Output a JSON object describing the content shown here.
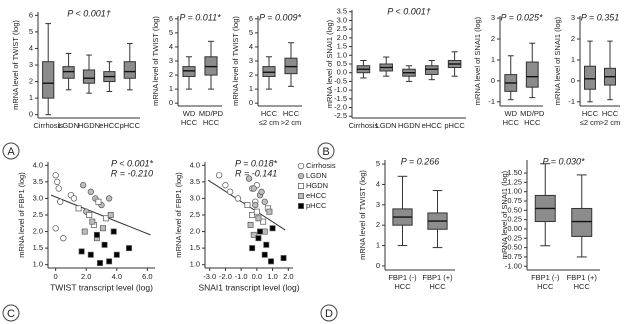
{
  "panel_labels": [
    "A",
    "B",
    "C",
    "D"
  ],
  "chart_data": [
    {
      "type": "box",
      "ylabel": "mRNA level of TWIST (log)",
      "annotations": [
        "P < 0.001†"
      ],
      "categories": [
        [
          "Cirrhosis"
        ],
        [
          "LGDN"
        ],
        [
          "HGDN"
        ],
        [
          "eHCC"
        ],
        [
          "pHCC"
        ]
      ],
      "color": "#8c8c8c",
      "boxes": [
        {
          "whislo": 0,
          "q1": 1.0,
          "med": 1.9,
          "q3": 3.2,
          "whishi": 5.5
        },
        {
          "whislo": 1.5,
          "q1": 2.2,
          "med": 2.6,
          "q3": 2.9,
          "whishi": 3.7
        },
        {
          "whislo": 1.3,
          "q1": 1.9,
          "med": 2.2,
          "q3": 2.7,
          "whishi": 3.6
        },
        {
          "whislo": 1.4,
          "q1": 2.0,
          "med": 2.3,
          "q3": 2.6,
          "whishi": 3.2
        },
        {
          "whislo": 1.5,
          "q1": 2.2,
          "med": 2.6,
          "q3": 3.2,
          "whishi": 4.3
        }
      ],
      "ylim": [
        -0.2,
        6.2
      ],
      "yticks": [
        0,
        1,
        2,
        3,
        4,
        5,
        6
      ]
    },
    {
      "type": "box",
      "ylabel": "mRNA level of TWIST (log)",
      "annotations": [
        "P = 0.011*"
      ],
      "categories": [
        [
          "WD",
          "HCC"
        ],
        [
          "MD/PD",
          "HCC"
        ]
      ],
      "color": "#8c8c8c",
      "boxes": [
        {
          "whislo": 1.0,
          "q1": 1.9,
          "med": 2.3,
          "q3": 2.6,
          "whishi": 3.3
        },
        {
          "whislo": 1.0,
          "q1": 2.0,
          "med": 2.6,
          "q3": 3.3,
          "whishi": 4.4
        }
      ],
      "ylim": [
        -0.2,
        6.2
      ],
      "yticks": [
        0,
        1,
        2,
        3,
        4,
        5,
        6
      ]
    },
    {
      "type": "box",
      "ylabel": "mRNA level of TWIST (log)",
      "annotations": [
        "P = 0.009*"
      ],
      "categories": [
        [
          "HCC",
          "≤2 cm"
        ],
        [
          "HCC",
          ">2 cm"
        ]
      ],
      "color": "#8c8c8c",
      "boxes": [
        {
          "whislo": 1.0,
          "q1": 1.9,
          "med": 2.2,
          "q3": 2.6,
          "whishi": 3.3
        },
        {
          "whislo": 1.2,
          "q1": 2.1,
          "med": 2.6,
          "q3": 3.2,
          "whishi": 4.3
        }
      ],
      "ylim": [
        -0.2,
        6.2
      ],
      "yticks": [
        0,
        1,
        2,
        3,
        4,
        5,
        6
      ]
    },
    {
      "type": "box",
      "ylabel": "mRNA level of SNAI1 (log)",
      "annotations": [
        "P < 0.001†"
      ],
      "categories": [
        [
          "Cirrhosis"
        ],
        [
          "LGDN"
        ],
        [
          "HGDN"
        ],
        [
          "eHCC"
        ],
        [
          "pHCC"
        ]
      ],
      "color": "#8c8c8c",
      "boxes": [
        {
          "whislo": -0.3,
          "q1": 0.0,
          "med": 0.2,
          "q3": 0.4,
          "whishi": 0.7
        },
        {
          "whislo": -0.2,
          "q1": 0.1,
          "med": 0.3,
          "q3": 0.5,
          "whishi": 0.9
        },
        {
          "whislo": -0.5,
          "q1": -0.2,
          "med": 0.0,
          "q3": 0.2,
          "whishi": 0.4
        },
        {
          "whislo": -0.4,
          "q1": -0.1,
          "med": 0.2,
          "q3": 0.4,
          "whishi": 0.7
        },
        {
          "whislo": -0.2,
          "q1": 0.3,
          "med": 0.5,
          "q3": 0.7,
          "whishi": 1.2
        }
      ],
      "ylim": [
        -2.6,
        3.6
      ],
      "yticks": [
        -2.5,
        {
          "value": -2,
          "label": "-2.0"
        },
        -1.5,
        {
          "value": -1,
          "label": "-1.0"
        },
        -0.5,
        {
          "value": 0,
          "label": "0.0"
        },
        0.5,
        {
          "value": 1,
          "label": "1.0"
        },
        1.5,
        {
          "value": 2,
          "label": "2.0"
        },
        2.5,
        {
          "value": 3,
          "label": "3.0"
        },
        3.5
      ]
    },
    {
      "type": "box",
      "ylabel": "mRNA level of SNAI1 (log)",
      "annotations": [
        "P = 0.025*"
      ],
      "categories": [
        [
          "WD",
          "HCC"
        ],
        [
          "MD/PD",
          "HCC"
        ]
      ],
      "color": "#8c8c8c",
      "boxes": [
        {
          "whislo": -0.9,
          "q1": -0.5,
          "med": -0.1,
          "q3": 0.3,
          "whishi": 1.2
        },
        {
          "whislo": -0.8,
          "q1": -0.3,
          "med": 0.2,
          "q3": 0.9,
          "whishi": 1.8
        }
      ],
      "ylim": [
        -1.2,
        3.1
      ],
      "yticks": [
        -1,
        0,
        1,
        2,
        3
      ]
    },
    {
      "type": "box",
      "ylabel": "mRNA level of SNAI1 (log)",
      "annotations": [
        "P = 0.351"
      ],
      "categories": [
        [
          "HCC",
          "≤2 cm"
        ],
        [
          "HCC",
          ">2 cm"
        ]
      ],
      "color": "#8c8c8c",
      "boxes": [
        {
          "whislo": -1.0,
          "q1": -0.4,
          "med": 0.1,
          "q3": 0.7,
          "whishi": 1.9
        },
        {
          "whislo": -0.9,
          "q1": -0.2,
          "med": 0.2,
          "q3": 0.6,
          "whishi": 1.9
        }
      ],
      "ylim": [
        -1.2,
        3.1
      ],
      "yticks": [
        -1,
        0,
        1,
        2,
        3
      ]
    },
    {
      "type": "scatter",
      "xlabel": "TWIST transcript level (log)",
      "ylabel": "mRNA level of FBP1 (log)",
      "annotations": [
        "P < 0.001*",
        "R = -0.210"
      ],
      "series": [
        {
          "marker": "circle",
          "color": "#ffffff",
          "x": [
            0,
            0.1,
            0.2,
            0.3,
            1.0,
            1.2,
            0.0,
            0.5
          ],
          "y": [
            3.7,
            3.5,
            3.3,
            2.9,
            3.1,
            3.0,
            2.1,
            1.8
          ]
        },
        {
          "marker": "circle",
          "color": "#bdbdbd",
          "x": [
            1.8,
            2.3,
            2.6,
            3.0,
            2.0,
            3.5
          ],
          "y": [
            3.4,
            3.2,
            3.0,
            2.8,
            2.6,
            3.0
          ]
        },
        {
          "marker": "square",
          "color": "#ffffff",
          "x": [
            1.5,
            2.2,
            2.8,
            3.3,
            2.5
          ],
          "y": [
            2.7,
            2.5,
            2.9,
            2.4,
            2.2
          ]
        },
        {
          "marker": "square",
          "color": "#bdbdbd",
          "x": [
            1.9,
            2.4,
            3.1,
            2.7,
            3.6
          ],
          "y": [
            2.0,
            2.3,
            2.1,
            1.8,
            2.5
          ]
        },
        {
          "marker": "square",
          "color": "#000000",
          "x": [
            1.7,
            2.3,
            2.7,
            3.2,
            3.5,
            4.0,
            4.8,
            2.9,
            3.8
          ],
          "y": [
            1.4,
            1.3,
            1.9,
            1.6,
            1.1,
            1.3,
            1.5,
            1.05,
            2.0
          ]
        }
      ],
      "trendline": {
        "x": [
          -0.3,
          6.2
        ],
        "y": [
          3.1,
          1.9
        ]
      },
      "xlim": [
        -0.5,
        6.5
      ],
      "xticks": [
        0,
        {
          "value": 2,
          "label": "2.0"
        },
        {
          "value": 4,
          "label": "4.0"
        },
        {
          "value": 6,
          "label": "6.0"
        }
      ],
      "ylim": [
        0.9,
        4.1
      ],
      "yticks": [
        {
          "value": 1,
          "label": "1.0"
        },
        1.5,
        {
          "value": 2,
          "label": "2.0"
        },
        2.5,
        {
          "value": 3,
          "label": "3.0"
        },
        3.5,
        {
          "value": 4,
          "label": "4.0"
        }
      ]
    },
    {
      "type": "scatter",
      "xlabel": "SNAI1 transcript level (log)",
      "ylabel": "mRNA level of FBP1 (log)",
      "annotations": [
        "P = 0.018*",
        "R = -0.141"
      ],
      "legend": "right",
      "series": [
        {
          "name": "Cirrhosis",
          "marker": "circle",
          "color": "#ffffff",
          "x": [
            -2.4,
            -2.0,
            -1.7,
            -1.2,
            -0.3,
            0.0,
            -0.1
          ],
          "y": [
            3.7,
            3.4,
            3.2,
            3.0,
            3.3,
            3.4,
            2.9
          ]
        },
        {
          "name": "LGDN",
          "marker": "circle",
          "color": "#bdbdbd",
          "x": [
            -0.5,
            -0.2,
            0.2,
            0.5,
            0.3,
            -0.1
          ],
          "y": [
            3.6,
            3.3,
            3.1,
            2.9,
            3.2,
            2.8
          ]
        },
        {
          "name": "HGDN",
          "marker": "square",
          "color": "#ffffff",
          "x": [
            -0.6,
            -0.3,
            0.0,
            0.4,
            0.7
          ],
          "y": [
            2.8,
            2.5,
            2.6,
            2.3,
            2.7
          ]
        },
        {
          "name": "eHCC",
          "marker": "square",
          "color": "#bdbdbd",
          "x": [
            -0.4,
            0.1,
            0.5,
            0.8,
            -0.2
          ],
          "y": [
            2.2,
            2.4,
            2.0,
            2.6,
            1.9
          ]
        },
        {
          "name": "pHCC",
          "marker": "square",
          "color": "#000000",
          "x": [
            -0.3,
            0.1,
            0.5,
            0.9,
            1.7,
            0.2,
            0.6,
            1.0
          ],
          "y": [
            1.5,
            1.8,
            1.3,
            1.1,
            1.2,
            2.0,
            1.6,
            2.1
          ]
        }
      ],
      "trendline": {
        "x": [
          -3.1,
          1.8
        ],
        "y": [
          3.55,
          2.05
        ]
      },
      "xlim": [
        -3.3,
        2.3
      ],
      "xticks": [
        {
          "value": -3,
          "label": "-3.0"
        },
        {
          "value": -2,
          "label": "-2.0"
        },
        {
          "value": -1,
          "label": "-1.0"
        },
        {
          "value": 0,
          "label": "0.0"
        },
        {
          "value": 1,
          "label": "1.0"
        },
        {
          "value": 2,
          "label": "2.0"
        }
      ],
      "ylim": [
        0.9,
        4.1
      ],
      "yticks": [
        {
          "value": 1,
          "label": "1.0"
        },
        1.5,
        {
          "value": 2,
          "label": "2.0"
        },
        2.5,
        {
          "value": 3,
          "label": "3.0"
        },
        3.5,
        {
          "value": 4,
          "label": "4.0"
        }
      ]
    },
    {
      "type": "box",
      "ylabel": "mRNA level of TWIST (log)",
      "annotations": [
        "P = 0.266"
      ],
      "categories": [
        [
          "FBP1 (-)",
          "HCC"
        ],
        [
          "FBP1 (+)",
          "HCC"
        ]
      ],
      "color": "#8c8c8c",
      "boxes": [
        {
          "whislo": 1.0,
          "q1": 2.0,
          "med": 2.4,
          "q3": 2.8,
          "whishi": 4.4
        },
        {
          "whislo": 0.9,
          "q1": 1.8,
          "med": 2.2,
          "q3": 2.6,
          "whishi": 3.7
        }
      ],
      "ylim": [
        -0.2,
        5.2
      ],
      "yticks": [
        0,
        1,
        2,
        3,
        4,
        5
      ]
    },
    {
      "type": "box",
      "ylabel": "mRNA level of SNAI1 (log)",
      "annotations": [
        "P = 0.030*"
      ],
      "categories": [
        [
          "FBP1 (-)",
          "HCC"
        ],
        [
          "FBP1 (+)",
          "HCC"
        ]
      ],
      "color": "#8c8c8c",
      "boxes": [
        {
          "whislo": -0.45,
          "q1": 0.2,
          "med": 0.55,
          "q3": 0.9,
          "whishi": 1.75
        },
        {
          "whislo": -0.75,
          "q1": -0.2,
          "med": 0.2,
          "q3": 0.55,
          "whishi": 1.45
        }
      ],
      "ylim": [
        -1.1,
        1.85
      ],
      "yticks": [
        {
          "value": -1,
          "label": "-1.00"
        },
        -0.75,
        {
          "value": -0.5,
          "label": "-0.50"
        },
        -0.25,
        {
          "value": 0,
          "label": "0.00"
        },
        0.25,
        {
          "value": 0.5,
          "label": "0.50"
        },
        0.75,
        {
          "value": 1,
          "label": "1.00"
        },
        1.25,
        {
          "value": 1.5,
          "label": "1.50"
        }
      ]
    }
  ]
}
